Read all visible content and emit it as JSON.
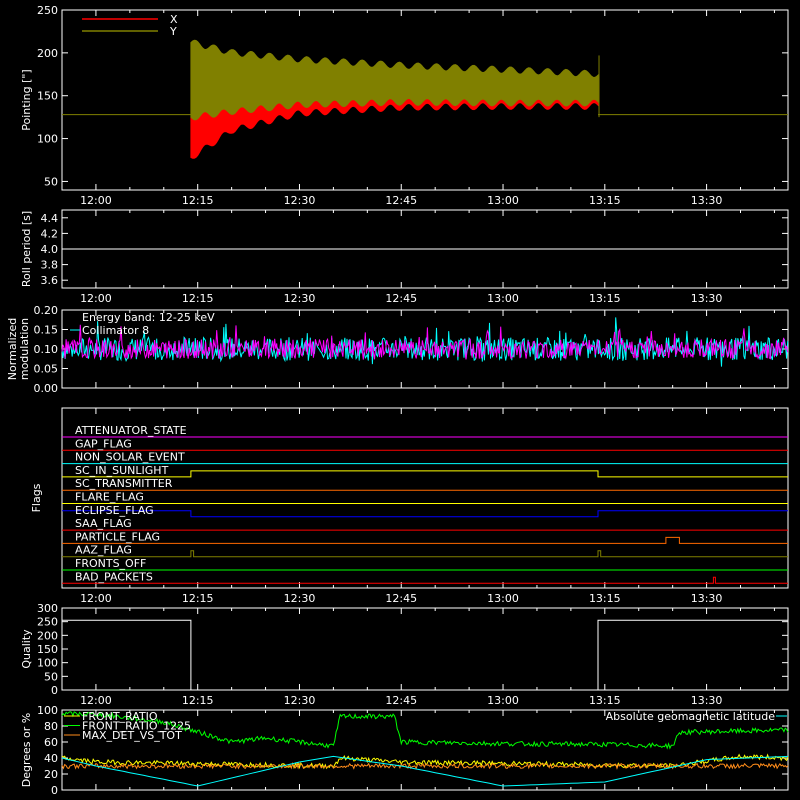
{
  "chart_data": [
    {
      "type": "line",
      "ylabel": "Pointing [\"]",
      "ylim": [
        40,
        250
      ],
      "yticks": [
        50,
        100,
        150,
        200,
        250
      ],
      "xticks": [
        "12:00",
        "12:15",
        "12:30",
        "12:45",
        "13:00",
        "13:15",
        "13:30"
      ],
      "legend": {
        "position": "top-left",
        "entries": [
          {
            "name": "X",
            "color": "#ff0000"
          },
          {
            "name": "Y",
            "color": "#808000"
          }
        ]
      },
      "active_span": [
        "12:14",
        "13:14"
      ],
      "baseline": 128,
      "series": [
        {
          "name": "X",
          "color": "#ff0000",
          "x": [
            "12:14",
            "12:20",
            "12:30",
            "12:45",
            "13:00",
            "13:14"
          ],
          "upper": [
            125,
            178,
            176,
            174,
            173,
            172
          ],
          "lower": [
            78,
            110,
            130,
            137,
            138,
            138
          ]
        },
        {
          "name": "Y",
          "color": "#808000",
          "x": [
            "12:14",
            "12:20",
            "12:30",
            "12:45",
            "13:00",
            "13:14"
          ],
          "upper": [
            212,
            200,
            192,
            185,
            180,
            175
          ],
          "lower": [
            125,
            132,
            140,
            143,
            142,
            142
          ]
        }
      ]
    },
    {
      "type": "line",
      "ylabel": "Roll period [s]",
      "ylim": [
        3.5,
        4.5
      ],
      "yticks": [
        "3.6",
        "3.8",
        "4.0",
        "4.2",
        "4.4"
      ],
      "xticks": [
        "12:00",
        "12:15",
        "12:30",
        "12:45",
        "13:00",
        "13:15",
        "13:30"
      ],
      "series": [
        {
          "name": "Roll period",
          "values": [
            4.0
          ]
        }
      ]
    },
    {
      "type": "line",
      "ylabel_line1": "Normalized",
      "ylabel_line2": "modulation",
      "ylim": [
        0,
        0.2
      ],
      "yticks": [
        "0.00",
        "0.05",
        "0.10",
        "0.15",
        "0.20"
      ],
      "xticks": [
        "12:00",
        "12:15",
        "12:30",
        "12:45",
        "13:00",
        "13:15",
        "13:30"
      ],
      "annotation": "Energy band: 12-25 keV",
      "legend": {
        "position": "top-left",
        "entries": [
          {
            "name": "Collimator 8",
            "color": "#00ffff"
          }
        ]
      },
      "series": [
        {
          "name": "Collimator 8",
          "color": "#00ffff",
          "mean": 0.1,
          "spread": 0.03
        },
        {
          "name": "",
          "color": "#ff00ff",
          "mean": 0.1,
          "spread": 0.025
        }
      ]
    },
    {
      "type": "line",
      "ylabel": "Flags",
      "xticks": [
        "12:00",
        "12:15",
        "12:30",
        "12:45",
        "13:00",
        "13:15",
        "13:30"
      ],
      "flags": [
        {
          "name": "ATTENUATOR_STATE",
          "color": "#ff00ff",
          "high": []
        },
        {
          "name": "GAP_FLAG",
          "color": "#ff0000",
          "high": []
        },
        {
          "name": "NON_SOLAR_EVENT",
          "color": "#00ffff",
          "high": []
        },
        {
          "name": "SC_IN_SUNLIGHT",
          "color": "#ffff00",
          "high": [
            [
              "12:14",
              "13:14"
            ]
          ]
        },
        {
          "name": "SC_TRANSMITTER",
          "color": "#ff6a00",
          "high": []
        },
        {
          "name": "FLARE_FLAG",
          "color": "#ffff00",
          "high": []
        },
        {
          "name": "ECLIPSE_FLAG",
          "color": "#0000ff",
          "high": [
            [
              "11:55",
              "12:14"
            ],
            [
              "13:14",
              "13:42"
            ]
          ]
        },
        {
          "name": "SAA_FLAG",
          "color": "#ff0000",
          "high": []
        },
        {
          "name": "PARTICLE_FLAG",
          "color": "#ff6a00",
          "high": [
            [
              "13:24",
              "13:26"
            ]
          ]
        },
        {
          "name": "AAZ_FLAG",
          "color": "#808000",
          "high": [
            [
              "12:14",
              "12:14.4"
            ],
            [
              "13:14",
              "13:14.4"
            ]
          ]
        },
        {
          "name": "FRONTS_OFF",
          "color": "#00ff00",
          "high": []
        },
        {
          "name": "BAD_PACKETS",
          "color": "#ff0000",
          "high": [
            [
              "13:31",
              "13:31.3"
            ]
          ]
        }
      ]
    },
    {
      "type": "line",
      "ylabel": "Quality",
      "ylim": [
        0,
        300
      ],
      "yticks": [
        "0",
        "50",
        "100",
        "150",
        "200",
        "250",
        "300"
      ],
      "xticks": [
        "12:00",
        "12:15",
        "12:30",
        "12:45",
        "13:00",
        "13:15",
        "13:30"
      ],
      "series": [
        {
          "name": "Quality",
          "x": [
            "11:55",
            "12:14",
            "12:14",
            "13:14",
            "13:14",
            "13:42"
          ],
          "values": [
            255,
            255,
            0,
            0,
            255,
            255
          ]
        }
      ]
    },
    {
      "type": "line",
      "ylabel": "Degrees or %",
      "ylim": [
        0,
        100
      ],
      "yticks": [
        "0",
        "20",
        "40",
        "60",
        "80",
        "100"
      ],
      "legend": {
        "position": "top-left",
        "entries": [
          {
            "name": "FRONT_RATIO",
            "color": "#ffff00"
          },
          {
            "name": "FRONT_RATIO_1225",
            "color": "#00ff00"
          },
          {
            "name": "MAX_DET_VS_TOT",
            "color": "#ff8c1a"
          }
        ]
      },
      "legend_right": {
        "name": "Absolute geomagnetic latitude",
        "color": "#00ffff"
      },
      "series": [
        {
          "name": "FRONT_RATIO_1225",
          "color": "#00ff00",
          "x": [
            "11:55",
            "12:00",
            "12:10",
            "12:20",
            "12:25",
            "12:35",
            "12:36",
            "12:44",
            "12:45",
            "13:00",
            "13:15",
            "13:25",
            "13:26",
            "13:42"
          ],
          "values": [
            95,
            95,
            85,
            60,
            65,
            55,
            92,
            92,
            60,
            58,
            57,
            55,
            72,
            75
          ]
        },
        {
          "name": "FRONT_RATIO",
          "color": "#ffff00",
          "x": [
            "11:55",
            "12:00",
            "12:35",
            "12:36",
            "12:45",
            "13:25",
            "13:35",
            "13:42"
          ],
          "values": [
            40,
            35,
            30,
            40,
            35,
            30,
            42,
            40
          ]
        },
        {
          "name": "MAX_DET_VS_TOT",
          "color": "#ff8c1a",
          "x": [
            "11:55",
            "13:42"
          ],
          "values": [
            30,
            30
          ]
        },
        {
          "name": "Absolute geomagnetic latitude",
          "color": "#00ffff",
          "x": [
            "11:55",
            "12:00",
            "12:15",
            "12:30",
            "12:35",
            "12:45",
            "13:00",
            "13:15",
            "13:30",
            "13:42"
          ],
          "values": [
            40,
            30,
            5,
            35,
            42,
            30,
            5,
            10,
            38,
            42
          ]
        }
      ]
    }
  ]
}
